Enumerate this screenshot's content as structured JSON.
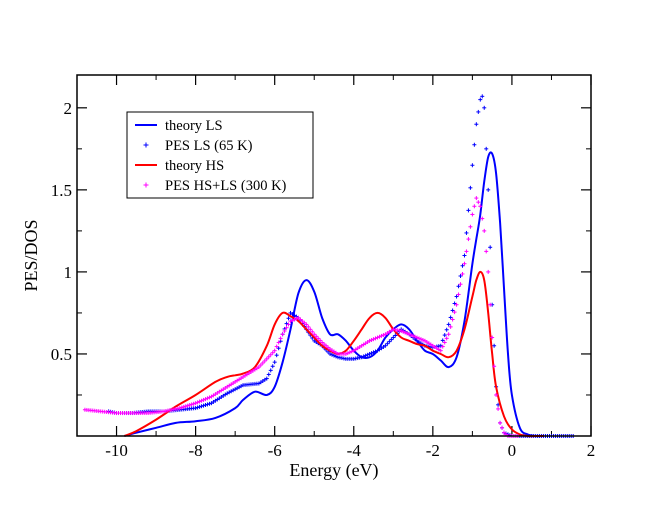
{
  "chart_data": {
    "type": "line",
    "title": "",
    "xlabel": "Energy (eV)",
    "ylabel": "PES/DOS",
    "xlim": [
      -11,
      2
    ],
    "ylim": [
      0,
      2.2
    ],
    "x_ticks": [
      -10,
      -8,
      -6,
      -4,
      -2,
      0,
      2
    ],
    "y_ticks": [
      0.5,
      1,
      1.5,
      2
    ],
    "grid": false,
    "legend_position": "top-left",
    "series": [
      {
        "name": "theory LS",
        "style": "line",
        "color": "#0000ff",
        "x": [
          -9.8,
          -9.5,
          -9.0,
          -8.5,
          -8.0,
          -7.5,
          -7.0,
          -6.8,
          -6.5,
          -6.2,
          -6.0,
          -5.8,
          -5.6,
          -5.4,
          -5.2,
          -5.0,
          -4.8,
          -4.6,
          -4.4,
          -4.2,
          -4.0,
          -3.8,
          -3.6,
          -3.4,
          -3.2,
          -3.0,
          -2.8,
          -2.6,
          -2.4,
          -2.2,
          -2.0,
          -1.8,
          -1.6,
          -1.4,
          -1.2,
          -1.0,
          -0.9,
          -0.8,
          -0.7,
          -0.6,
          -0.5,
          -0.4,
          -0.3,
          -0.2,
          -0.1,
          0.0,
          0.2,
          0.4,
          0.6,
          0.8
        ],
        "y": [
          0.0,
          0.02,
          0.05,
          0.08,
          0.09,
          0.11,
          0.17,
          0.22,
          0.27,
          0.25,
          0.3,
          0.45,
          0.65,
          0.87,
          0.95,
          0.88,
          0.72,
          0.62,
          0.62,
          0.58,
          0.52,
          0.48,
          0.48,
          0.52,
          0.6,
          0.65,
          0.68,
          0.65,
          0.58,
          0.52,
          0.5,
          0.46,
          0.42,
          0.48,
          0.7,
          1.05,
          1.2,
          1.35,
          1.55,
          1.7,
          1.72,
          1.6,
          1.3,
          0.9,
          0.5,
          0.25,
          0.05,
          0.01,
          0.0,
          0.0
        ]
      },
      {
        "name": "PES LS (65 K)",
        "style": "markers",
        "color": "#0000ff",
        "x": [
          -10.2,
          -10.0,
          -9.6,
          -9.2,
          -8.8,
          -8.4,
          -8.0,
          -7.6,
          -7.2,
          -6.8,
          -6.4,
          -6.2,
          -6.0,
          -5.8,
          -5.6,
          -5.4,
          -5.2,
          -5.0,
          -4.8,
          -4.6,
          -4.4,
          -4.2,
          -4.0,
          -3.8,
          -3.6,
          -3.4,
          -3.2,
          -3.0,
          -2.8,
          -2.6,
          -2.4,
          -2.2,
          -2.0,
          -1.8,
          -1.6,
          -1.4,
          -1.2,
          -1.0,
          -0.9,
          -0.8,
          -0.75,
          -0.7,
          -0.6,
          -0.5,
          -0.4,
          -0.3,
          -0.2,
          -0.1,
          0.0,
          0.2,
          0.4,
          0.6,
          0.8,
          1.0,
          1.2,
          1.4,
          1.6
        ],
        "y": [
          0.15,
          0.14,
          0.14,
          0.15,
          0.15,
          0.16,
          0.17,
          0.2,
          0.26,
          0.31,
          0.32,
          0.35,
          0.45,
          0.62,
          0.75,
          0.72,
          0.65,
          0.58,
          0.55,
          0.5,
          0.48,
          0.47,
          0.47,
          0.48,
          0.5,
          0.52,
          0.55,
          0.6,
          0.65,
          0.62,
          0.58,
          0.55,
          0.54,
          0.55,
          0.68,
          0.85,
          1.1,
          1.65,
          1.9,
          2.05,
          2.07,
          2.0,
          1.5,
          0.8,
          0.3,
          0.08,
          0.02,
          0.01,
          0.0,
          0.0,
          0.0,
          0.0,
          0.0,
          0.0,
          0.0,
          0.0,
          0.0
        ]
      },
      {
        "name": "theory HS",
        "style": "line",
        "color": "#ff0000",
        "x": [
          -9.8,
          -9.5,
          -9.0,
          -8.5,
          -8.0,
          -7.5,
          -7.2,
          -7.0,
          -6.8,
          -6.5,
          -6.2,
          -6.0,
          -5.8,
          -5.6,
          -5.4,
          -5.2,
          -5.0,
          -4.8,
          -4.6,
          -4.4,
          -4.2,
          -4.0,
          -3.8,
          -3.6,
          -3.4,
          -3.2,
          -3.0,
          -2.8,
          -2.6,
          -2.4,
          -2.2,
          -2.0,
          -1.8,
          -1.6,
          -1.4,
          -1.2,
          -1.0,
          -0.9,
          -0.8,
          -0.7,
          -0.6,
          -0.5,
          -0.4,
          -0.2,
          0.0,
          0.2,
          0.4,
          0.6,
          0.8
        ],
        "y": [
          0.0,
          0.03,
          0.1,
          0.18,
          0.25,
          0.33,
          0.36,
          0.37,
          0.38,
          0.42,
          0.55,
          0.68,
          0.75,
          0.73,
          0.7,
          0.65,
          0.6,
          0.55,
          0.52,
          0.5,
          0.52,
          0.58,
          0.65,
          0.72,
          0.75,
          0.72,
          0.65,
          0.6,
          0.58,
          0.56,
          0.55,
          0.52,
          0.5,
          0.48,
          0.52,
          0.65,
          0.85,
          0.95,
          1.0,
          0.95,
          0.75,
          0.5,
          0.3,
          0.12,
          0.04,
          0.01,
          0.0,
          0.0,
          0.0
        ]
      },
      {
        "name": "PES HS+LS (300 K)",
        "style": "markers",
        "color": "#ff00ff",
        "x": [
          -10.8,
          -10.4,
          -10.0,
          -9.6,
          -9.2,
          -8.8,
          -8.4,
          -8.0,
          -7.6,
          -7.2,
          -6.8,
          -6.4,
          -6.0,
          -5.8,
          -5.6,
          -5.4,
          -5.2,
          -5.0,
          -4.8,
          -4.6,
          -4.4,
          -4.2,
          -4.0,
          -3.8,
          -3.6,
          -3.4,
          -3.2,
          -3.0,
          -2.8,
          -2.6,
          -2.4,
          -2.2,
          -2.0,
          -1.8,
          -1.6,
          -1.4,
          -1.2,
          -1.0,
          -0.9,
          -0.8,
          -0.7,
          -0.6,
          -0.5,
          -0.4,
          -0.3,
          -0.2,
          -0.1,
          0.0,
          0.2
        ],
        "y": [
          0.16,
          0.15,
          0.14,
          0.14,
          0.14,
          0.15,
          0.17,
          0.2,
          0.24,
          0.3,
          0.36,
          0.42,
          0.52,
          0.62,
          0.7,
          0.72,
          0.68,
          0.62,
          0.57,
          0.53,
          0.5,
          0.5,
          0.52,
          0.55,
          0.58,
          0.6,
          0.62,
          0.65,
          0.64,
          0.62,
          0.6,
          0.58,
          0.55,
          0.52,
          0.62,
          0.8,
          1.05,
          1.35,
          1.45,
          1.4,
          1.25,
          1.0,
          0.6,
          0.25,
          0.08,
          0.02,
          0.0,
          0.0,
          0.0
        ]
      }
    ]
  }
}
